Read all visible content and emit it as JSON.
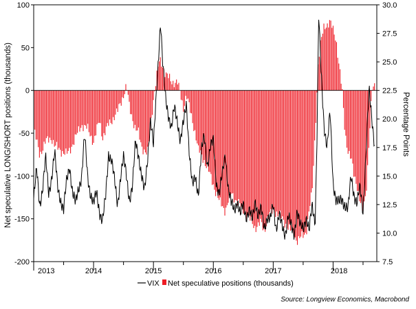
{
  "chart_data": {
    "type": "bar+line",
    "title": "",
    "source": "Source: Longview Economics, Macrobond",
    "left_axis": {
      "label": "Net speculative LONG/SHORT positions (thousands)",
      "ylim": [
        -200,
        100
      ],
      "ticks": [
        100,
        50,
        0,
        -50,
        -100,
        -150,
        -200
      ],
      "tick_labels": [
        "100",
        "50",
        "0",
        "-50",
        "-100",
        "-150",
        "-200"
      ]
    },
    "right_axis": {
      "label": "Percentage Points",
      "ylim": [
        7.5,
        30.0
      ],
      "ticks": [
        30.0,
        27.5,
        25.0,
        22.5,
        20.0,
        17.5,
        15.0,
        12.5,
        10.0,
        7.5
      ],
      "tick_labels": [
        "30.0",
        "27.5",
        "25.0",
        "22.5",
        "20.0",
        "17.5",
        "15.0",
        "12.5",
        "10.0",
        "7.5"
      ]
    },
    "x_axis": {
      "range": [
        2013.0,
        2018.73
      ],
      "tick_labels": [
        "2013",
        "2014",
        "2015",
        "2016",
        "2017",
        "2018"
      ],
      "tick_positions": [
        2013.0,
        2014.0,
        2015.0,
        2016.0,
        2017.0,
        2018.0
      ]
    },
    "legend": {
      "placement": "bottom-center",
      "items": [
        {
          "name": "VIX",
          "kind": "line",
          "color": "#000000"
        },
        {
          "name": "Net speculative positions (thousands)",
          "kind": "bar",
          "color": "#ee1c25"
        }
      ]
    },
    "series": [
      {
        "name": "Net speculative positions (thousands)",
        "type": "bar",
        "axis": "left",
        "color": "#ee1c25",
        "anchors_x": [
          2013.0,
          2013.1,
          2013.2,
          2013.3,
          2013.35,
          2013.45,
          2013.55,
          2013.6,
          2013.7,
          2013.8,
          2013.9,
          2014.0,
          2014.1,
          2014.15,
          2014.25,
          2014.35,
          2014.4,
          2014.45,
          2014.5,
          2014.55,
          2014.6,
          2014.7,
          2014.75,
          2014.8,
          2014.85,
          2014.9,
          2015.0,
          2015.05,
          2015.1,
          2015.15,
          2015.2,
          2015.25,
          2015.3,
          2015.4,
          2015.5,
          2015.55,
          2015.7,
          2015.75,
          2015.8,
          2015.9,
          2016.0,
          2016.1,
          2016.2,
          2016.3,
          2016.4,
          2016.5,
          2016.6,
          2016.7,
          2016.8,
          2016.85,
          2016.9,
          2017.0,
          2017.1,
          2017.2,
          2017.25,
          2017.3,
          2017.4,
          2017.5,
          2017.55,
          2017.6,
          2017.65,
          2017.7,
          2017.75,
          2017.78,
          2017.85,
          2017.95,
          2018.0,
          2018.05,
          2018.1,
          2018.15,
          2018.2,
          2018.25,
          2018.3,
          2018.35,
          2018.4,
          2018.45,
          2018.5,
          2018.55,
          2018.6,
          2018.65,
          2018.7
        ],
        "anchors_y": [
          -45,
          -75,
          -60,
          -55,
          -65,
          -70,
          -75,
          -70,
          -55,
          -40,
          -45,
          -60,
          -35,
          -55,
          -40,
          -30,
          -25,
          -15,
          -5,
          5,
          -20,
          -45,
          -50,
          -65,
          -70,
          -75,
          -10,
          15,
          35,
          30,
          20,
          15,
          10,
          10,
          -20,
          -5,
          -50,
          -70,
          -75,
          -90,
          -110,
          -130,
          -140,
          -120,
          -130,
          -140,
          -150,
          -160,
          -155,
          -165,
          -150,
          -140,
          -145,
          -155,
          -160,
          -165,
          -175,
          -170,
          -165,
          -140,
          -120,
          -50,
          30,
          50,
          75,
          80,
          70,
          60,
          30,
          0,
          -50,
          -70,
          -80,
          -100,
          -110,
          -130,
          -140,
          -120,
          -60,
          0,
          5
        ]
      },
      {
        "name": "VIX",
        "type": "line",
        "axis": "right",
        "color": "#000000",
        "anchors_x": [
          2013.0,
          2013.05,
          2013.1,
          2013.15,
          2013.2,
          2013.25,
          2013.3,
          2013.35,
          2013.4,
          2013.45,
          2013.5,
          2013.55,
          2013.6,
          2013.65,
          2013.7,
          2013.75,
          2013.8,
          2013.85,
          2013.9,
          2013.95,
          2014.0,
          2014.05,
          2014.1,
          2014.15,
          2014.2,
          2014.25,
          2014.3,
          2014.35,
          2014.4,
          2014.45,
          2014.5,
          2014.55,
          2014.6,
          2014.65,
          2014.7,
          2014.75,
          2014.8,
          2014.85,
          2014.9,
          2014.95,
          2015.0,
          2015.05,
          2015.1,
          2015.12,
          2015.15,
          2015.2,
          2015.25,
          2015.3,
          2015.35,
          2015.4,
          2015.45,
          2015.5,
          2015.55,
          2015.6,
          2015.65,
          2015.7,
          2015.75,
          2015.8,
          2015.85,
          2015.9,
          2015.95,
          2016.0,
          2016.05,
          2016.1,
          2016.15,
          2016.2,
          2016.25,
          2016.3,
          2016.35,
          2016.4,
          2016.45,
          2016.5,
          2016.55,
          2016.6,
          2016.65,
          2016.7,
          2016.75,
          2016.8,
          2016.85,
          2016.9,
          2016.95,
          2017.0,
          2017.05,
          2017.1,
          2017.15,
          2017.2,
          2017.25,
          2017.3,
          2017.35,
          2017.4,
          2017.45,
          2017.5,
          2017.55,
          2017.6,
          2017.65,
          2017.7,
          2017.73,
          2017.76,
          2017.8,
          2017.85,
          2017.9,
          2017.95,
          2018.0,
          2018.05,
          2018.1,
          2018.15,
          2018.2,
          2018.25,
          2018.3,
          2018.35,
          2018.4,
          2018.45,
          2018.5,
          2018.55,
          2018.6,
          2018.65,
          2018.7
        ],
        "anchors_y": [
          13,
          15.5,
          12.5,
          14,
          16.5,
          13.5,
          15,
          17,
          14,
          13,
          12,
          14.5,
          16,
          13.5,
          12.5,
          14,
          15,
          18.5,
          15,
          13.5,
          12.5,
          13.5,
          12,
          11,
          13,
          17,
          16.5,
          14.5,
          12.5,
          15,
          16.5,
          15,
          13,
          14,
          18,
          17,
          15,
          13.5,
          16.5,
          20,
          17.5,
          22.5,
          27,
          28.5,
          25,
          22,
          20.5,
          19,
          21,
          20,
          18,
          19.5,
          21.5,
          17,
          14,
          15,
          13.5,
          17,
          18.5,
          16,
          17.5,
          18,
          14.5,
          13.5,
          15,
          17,
          14,
          12.5,
          12,
          13,
          11.5,
          12.5,
          11.5,
          12,
          11,
          13,
          11.5,
          12,
          10.5,
          11.5,
          11,
          12.5,
          10.5,
          11.5,
          10.5,
          10,
          11.5,
          10.5,
          10,
          12,
          10.5,
          10.5,
          11.5,
          10,
          12.5,
          11,
          18,
          29,
          24,
          19.5,
          17.5,
          20.5,
          14.5,
          13,
          12.5,
          13,
          12.5,
          12,
          15,
          13.5,
          12.5,
          14,
          12,
          17,
          22.5,
          20,
          17.5
        ]
      }
    ]
  }
}
